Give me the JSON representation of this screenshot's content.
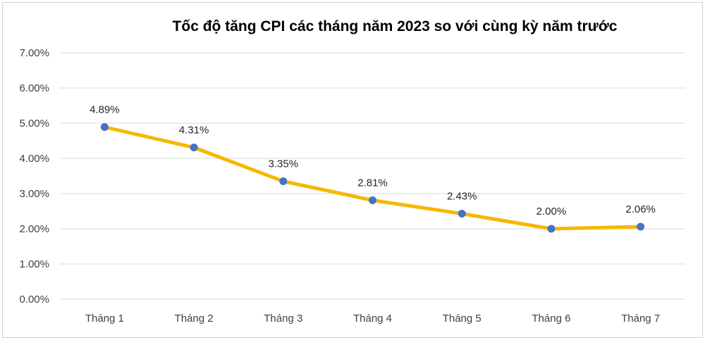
{
  "chart_data": {
    "type": "line",
    "title": "Tốc độ tăng CPI các tháng năm 2023 so với cùng kỳ năm trước",
    "xlabel": "",
    "ylabel": "",
    "categories": [
      "Tháng 1",
      "Tháng 2",
      "Tháng 3",
      "Tháng 4",
      "Tháng 5",
      "Tháng 6",
      "Tháng 7"
    ],
    "series": [
      {
        "values": [
          4.89,
          4.31,
          3.35,
          2.81,
          2.43,
          2.0,
          2.06
        ],
        "data_labels": [
          "4.89%",
          "4.31%",
          "3.35%",
          "2.81%",
          "2.43%",
          "2.00%",
          "2.06%"
        ]
      }
    ],
    "ylim": [
      0,
      7
    ],
    "yticks": [
      "0.00%",
      "1.00%",
      "2.00%",
      "3.00%",
      "4.00%",
      "5.00%",
      "6.00%",
      "7.00%"
    ],
    "grid": true,
    "legend": "none",
    "colors": {
      "line": "#F5B800",
      "marker": "#4472C4"
    }
  }
}
